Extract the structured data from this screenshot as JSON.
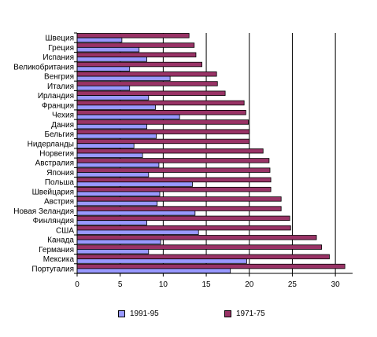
{
  "chart_data": {
    "type": "bar",
    "orientation": "horizontal",
    "title": "",
    "xlabel": "",
    "ylabel": "",
    "xlim": [
      0,
      32
    ],
    "xticks": [
      0,
      5,
      10,
      15,
      20,
      25,
      30
    ],
    "grid": "vertical",
    "legend_position": "bottom",
    "categories": [
      "Швеция",
      "Греция",
      "Испания",
      "Великобритания",
      "Венгрия",
      "Италия",
      "Ирландия",
      "Франция",
      "Чехия",
      "Дания",
      "Бельгия",
      "Нидерланды",
      "Норвегия",
      "Австралия",
      "Япония",
      "Польша",
      "Швейцария",
      "Австрия",
      "Новая Зеландия",
      "Финляндия",
      "США",
      "Канада",
      "Германия",
      "Мексика",
      "Португалия"
    ],
    "series": [
      {
        "name": "1991-95",
        "color": "#9999ff",
        "values": [
          5.2,
          7.2,
          8.1,
          6.1,
          10.8,
          6.1,
          8.3,
          9.1,
          11.9,
          8.1,
          9.2,
          6.6,
          7.6,
          9.5,
          8.3,
          13.4,
          9.6,
          9.3,
          13.7,
          8.1,
          14.1,
          9.7,
          8.3,
          19.7,
          17.8
        ]
      },
      {
        "name": "1971-75",
        "color": "#993366",
        "values": [
          13.0,
          13.6,
          13.8,
          14.5,
          16.2,
          16.3,
          17.2,
          19.4,
          19.6,
          19.9,
          20.0,
          20.0,
          21.6,
          22.3,
          22.4,
          22.5,
          22.5,
          23.7,
          23.7,
          24.7,
          24.8,
          27.8,
          28.4,
          29.3,
          31.1
        ]
      }
    ]
  }
}
